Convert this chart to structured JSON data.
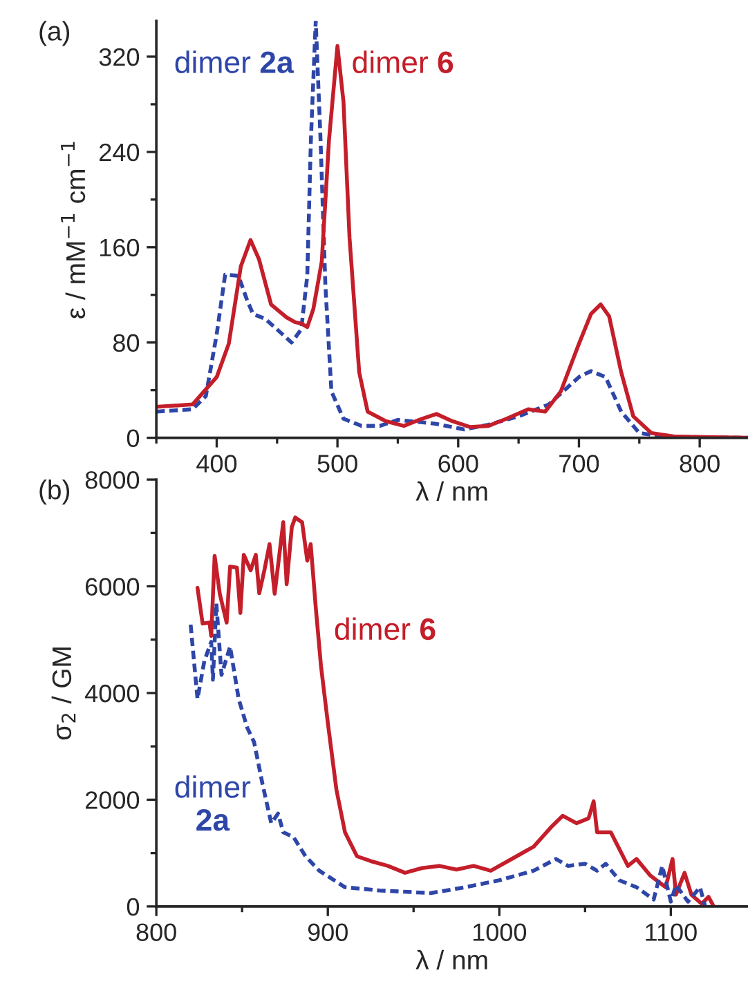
{
  "chart_data": [
    {
      "type": "line",
      "xlabel": "λ / nm",
      "ylabel": "ε / mM$^{−1}$ cm$^{−1}$",
      "annotations": [
        "(a)"
      ],
      "xlim": [
        350,
        840
      ],
      "ylim": [
        0,
        350
      ],
      "xticks": [
        {
          "value": 350,
          "label": null
        },
        400,
        {
          "value": 450,
          "label": null
        },
        500,
        {
          "value": 550,
          "label": null
        },
        600,
        {
          "value": 650,
          "label": null
        },
        700,
        {
          "value": 750,
          "label": null
        },
        800
      ],
      "yticks": [
        0,
        {
          "value": 40,
          "label": null
        },
        80,
        {
          "value": 120,
          "label": null
        },
        160,
        {
          "value": 200,
          "label": null
        },
        240,
        {
          "value": 280,
          "label": null
        },
        320
      ],
      "grid": false,
      "legend": false,
      "series": [
        {
          "name": "dimer 2a",
          "color": "#2e46a8",
          "line_style": "dashed",
          "x": [
            350,
            380,
            391,
            400,
            407,
            418,
            425,
            430,
            440,
            450,
            462,
            470,
            475,
            478,
            482,
            486,
            490,
            495,
            505,
            520,
            535,
            550,
            560,
            580,
            605,
            625,
            650,
            675,
            700,
            710,
            722,
            735,
            750,
            770,
            840
          ],
          "values": [
            22,
            24,
            35,
            87,
            137,
            136,
            116,
            104,
            100,
            91,
            80,
            91,
            136,
            250,
            350,
            250,
            128,
            39,
            16,
            10,
            10,
            15,
            14,
            12,
            7,
            11,
            18,
            28,
            51,
            56,
            51,
            22,
            4,
            1,
            0
          ]
        },
        {
          "name": "dimer 6",
          "color": "#c41e2a",
          "line_style": "solid",
          "x": [
            350,
            380,
            400,
            410,
            420,
            428,
            435,
            445,
            452,
            458,
            465,
            470,
            475,
            480,
            487,
            493,
            500,
            505,
            510,
            518,
            525,
            540,
            555,
            570,
            582,
            595,
            610,
            625,
            640,
            658,
            672,
            685,
            700,
            710,
            718,
            725,
            735,
            745,
            760,
            780,
            840
          ],
          "values": [
            26,
            28,
            51,
            79,
            144,
            166,
            150,
            112,
            106,
            101,
            97,
            96,
            93,
            108,
            148,
            250,
            329,
            282,
            168,
            55,
            22,
            14,
            10,
            16,
            20,
            14,
            9,
            10,
            16,
            24,
            22,
            39,
            79,
            104,
            112,
            102,
            55,
            18,
            4,
            1,
            0
          ]
        }
      ]
    },
    {
      "type": "line",
      "xlabel": "λ / nm",
      "ylabel": "σ$_{2}$ / GM",
      "annotations": [
        "(b)"
      ],
      "xlim": [
        800,
        1145
      ],
      "ylim": [
        0,
        8000
      ],
      "xticks": [
        800,
        {
          "value": 850,
          "label": null
        },
        900,
        {
          "value": 950,
          "label": null
        },
        1000,
        {
          "value": 1050,
          "label": null
        },
        1100
      ],
      "yticks": [
        0,
        {
          "value": 1000,
          "label": null
        },
        2000,
        {
          "value": 3000,
          "label": null
        },
        4000,
        {
          "value": 5000,
          "label": null
        },
        6000,
        {
          "value": 7000,
          "label": null
        },
        8000
      ],
      "grid": false,
      "legend": false,
      "series": [
        {
          "name": "dimer 6",
          "color": "#c41e2a",
          "line_style": "solid",
          "x": [
            824,
            827,
            831,
            832,
            834,
            837,
            841,
            843,
            847,
            849,
            851,
            855,
            858,
            860,
            863,
            866,
            869,
            874,
            876,
            879,
            881,
            885,
            888,
            890,
            893,
            896,
            900,
            905,
            910,
            917,
            925,
            935,
            945,
            955,
            965,
            975,
            985,
            995,
            1005,
            1020,
            1030,
            1037,
            1045,
            1052,
            1055,
            1057,
            1065,
            1075,
            1080,
            1088,
            1097,
            1101,
            1103,
            1108,
            1112,
            1118,
            1122,
            1125
          ],
          "values": [
            5970,
            5300,
            5320,
            5070,
            6570,
            5860,
            5320,
            6370,
            6350,
            5500,
            6590,
            6300,
            6590,
            5870,
            6300,
            6790,
            5860,
            7200,
            6040,
            7110,
            7290,
            7200,
            6480,
            6790,
            5590,
            4510,
            3440,
            2190,
            1390,
            940,
            850,
            760,
            630,
            720,
            760,
            690,
            760,
            670,
            850,
            1120,
            1480,
            1700,
            1560,
            1650,
            1970,
            1390,
            1390,
            760,
            890,
            580,
            360,
            890,
            220,
            630,
            220,
            50,
            180,
            0
          ]
        },
        {
          "name": "dimer 2a",
          "color": "#2e46a8",
          "line_style": "dashed",
          "x": [
            820,
            824,
            828,
            832,
            833,
            835,
            838,
            843,
            848,
            853,
            857,
            862,
            867,
            871,
            874,
            880,
            887,
            895,
            910,
            930,
            960,
            980,
            1000,
            1020,
            1033,
            1040,
            1050,
            1057,
            1062,
            1070,
            1080,
            1090,
            1095,
            1100,
            1103,
            1110,
            1117,
            1120
          ],
          "values": [
            5280,
            3890,
            4600,
            4960,
            4250,
            5680,
            4340,
            4870,
            3890,
            3350,
            3080,
            2280,
            1560,
            1740,
            1390,
            1300,
            940,
            670,
            360,
            300,
            250,
            360,
            490,
            670,
            890,
            760,
            800,
            670,
            800,
            490,
            360,
            130,
            760,
            90,
            400,
            90,
            360,
            0
          ]
        }
      ]
    }
  ]
}
